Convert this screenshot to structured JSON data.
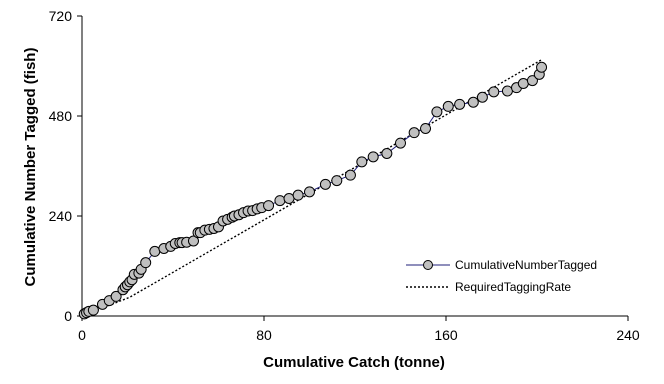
{
  "chart_data": {
    "type": "scatter",
    "title": "",
    "xlabel": "Cumulative Catch (tonne)",
    "ylabel": "Cumulative Number Tagged (fish)",
    "xlim": [
      0,
      240
    ],
    "ylim": [
      0,
      720
    ],
    "xticks": [
      "0",
      "80",
      "160",
      "240"
    ],
    "yticks": [
      "0",
      "240",
      "480",
      "720"
    ],
    "grid": false,
    "legend_position": "bottom-right",
    "series": [
      {
        "name": "CumulativeNumberTagged",
        "style": "line-with-markers",
        "line_color": "#1f1f7a",
        "marker_fill": "#c0c0c0",
        "marker_edge": "#000000",
        "x": [
          1,
          2,
          3,
          5,
          9,
          12,
          15,
          18,
          19,
          20,
          21,
          22,
          23,
          25,
          26,
          28,
          32,
          36,
          39,
          41,
          43,
          44,
          46,
          49,
          51,
          52,
          54,
          56,
          58,
          60,
          62,
          64,
          66,
          67,
          69,
          71,
          73,
          75,
          77,
          79,
          82,
          87,
          91,
          95,
          100,
          107,
          112,
          118,
          123,
          128,
          134,
          140,
          146,
          151,
          156,
          161,
          166,
          172,
          176,
          181,
          187,
          191,
          194,
          198,
          201,
          202
        ],
        "y": [
          5,
          8,
          11,
          14,
          28,
          37,
          47,
          63,
          70,
          75,
          82,
          87,
          100,
          103,
          112,
          128,
          155,
          162,
          167,
          174,
          176,
          176,
          177,
          180,
          200,
          200,
          206,
          208,
          210,
          214,
          228,
          232,
          237,
          240,
          243,
          248,
          252,
          253,
          257,
          260,
          265,
          277,
          282,
          290,
          298,
          316,
          325,
          338,
          370,
          382,
          390,
          415,
          440,
          450,
          490,
          503,
          508,
          513,
          525,
          538,
          540,
          548,
          558,
          565,
          580,
          597
        ]
      },
      {
        "name": "RequiredTaggingRate",
        "style": "dotted-line",
        "line_color": "#000000",
        "x": [
          0,
          21,
          202
        ],
        "y": [
          0,
          45,
          615
        ]
      }
    ]
  }
}
